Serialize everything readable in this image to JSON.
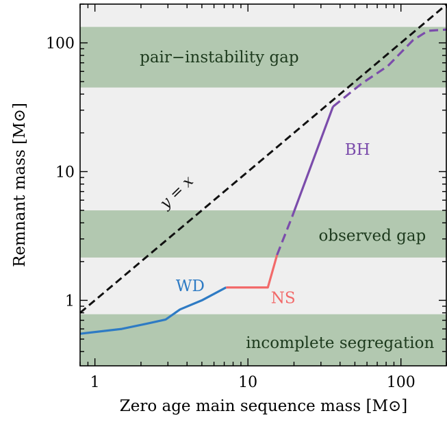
{
  "chart_data": {
    "type": "line",
    "xlabel": "Zero age main sequence mass [M⊙]",
    "ylabel": "Remnant mass [M⊙]",
    "xscale": "log",
    "yscale": "log",
    "xlim": [
      0.8,
      200
    ],
    "ylim": [
      0.31,
      200
    ],
    "x_ticks": [
      {
        "value": 1,
        "label": "1"
      },
      {
        "value": 10,
        "label": "10"
      },
      {
        "value": 100,
        "label": "100"
      }
    ],
    "y_ticks": [
      {
        "value": 1,
        "label": "1"
      },
      {
        "value": 10,
        "label": "10"
      },
      {
        "value": 100,
        "label": "100"
      }
    ],
    "bands": [
      {
        "y0": 45,
        "y1": 133,
        "label": "pair−instability gap",
        "label_x": 6.5,
        "label_y": 78
      },
      {
        "y0": 2.15,
        "y1": 5.0,
        "label": "observed gap",
        "label_x": 65,
        "label_y": 3.2
      },
      {
        "y0": 0.31,
        "y1": 0.78,
        "label": "incomplete segregation",
        "label_x": 40,
        "label_y": 0.47
      }
    ],
    "series": [
      {
        "name": "WD",
        "color": "#2e7bc4",
        "style": "solid",
        "label_x": 4.2,
        "label_y": 1.18,
        "points": [
          [
            0.8,
            0.55
          ],
          [
            1.5,
            0.6
          ],
          [
            2.2,
            0.66
          ],
          [
            2.9,
            0.71
          ],
          [
            3.6,
            0.85
          ],
          [
            5.0,
            1.0
          ],
          [
            7.2,
            1.26
          ]
        ]
      },
      {
        "name": "NS",
        "color": "#f26a6a",
        "style": "solid",
        "label_x": 17,
        "label_y": 0.95,
        "points": [
          [
            7.2,
            1.26
          ],
          [
            13.5,
            1.26
          ],
          [
            14.8,
            1.85
          ],
          [
            15.5,
            2.25
          ]
        ]
      },
      {
        "name": "BH",
        "color": "#7b4cab",
        "style": "solid",
        "label_x": 52,
        "label_y": 13.5,
        "points": [
          [
            19.5,
            4.5
          ],
          [
            36,
            32
          ]
        ]
      },
      {
        "name": "",
        "color": "#7b4cab",
        "style": "dashed",
        "points": [
          [
            15.5,
            2.25
          ],
          [
            19.5,
            4.5
          ]
        ]
      },
      {
        "name": "",
        "color": "#7b4cab",
        "style": "dashed",
        "points": [
          [
            36,
            32
          ],
          [
            55,
            48
          ],
          [
            82,
            66
          ],
          [
            120,
            105
          ],
          [
            150,
            124
          ],
          [
            200,
            127
          ]
        ]
      },
      {
        "name": "y = x",
        "color": "#111111",
        "style": "dashed",
        "label_x": 3.6,
        "label_y": 6.5,
        "points": [
          [
            0.8,
            0.8
          ],
          [
            200,
            200
          ]
        ]
      }
    ],
    "colors": {
      "band": "#b2c8b0",
      "background": "#efefef",
      "band_text": "#1d3a1d"
    }
  }
}
